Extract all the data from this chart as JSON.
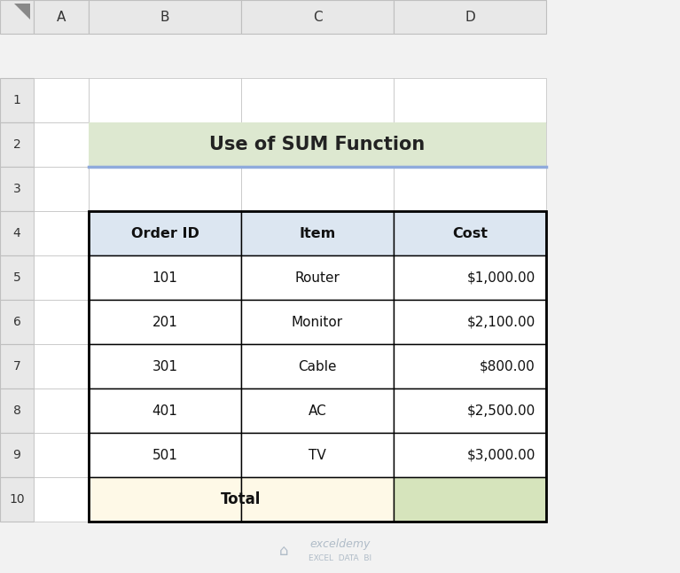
{
  "title": "Use of SUM Function",
  "title_bg": "#dde8d0",
  "title_underline_color": "#8faadc",
  "header_bg": "#dce6f1",
  "header_labels": [
    "Order ID",
    "Item",
    "Cost"
  ],
  "rows": [
    [
      "101",
      "Router",
      "$1,000.00"
    ],
    [
      "201",
      "Monitor",
      "$2,100.00"
    ],
    [
      "301",
      "Cable",
      "$800.00"
    ],
    [
      "401",
      "AC",
      "$2,500.00"
    ],
    [
      "501",
      "TV",
      "$3,000.00"
    ]
  ],
  "total_label": "Total",
  "total_label_bg": "#fef9e7",
  "total_value_bg": "#d6e4bc",
  "excel_bg": "#f2f2f2",
  "cell_bg": "#ffffff",
  "border_color": "#000000",
  "grid_color": "#bfbfbf",
  "watermark_color": "#b0bcc8",
  "fig_bg": "#ffffff"
}
